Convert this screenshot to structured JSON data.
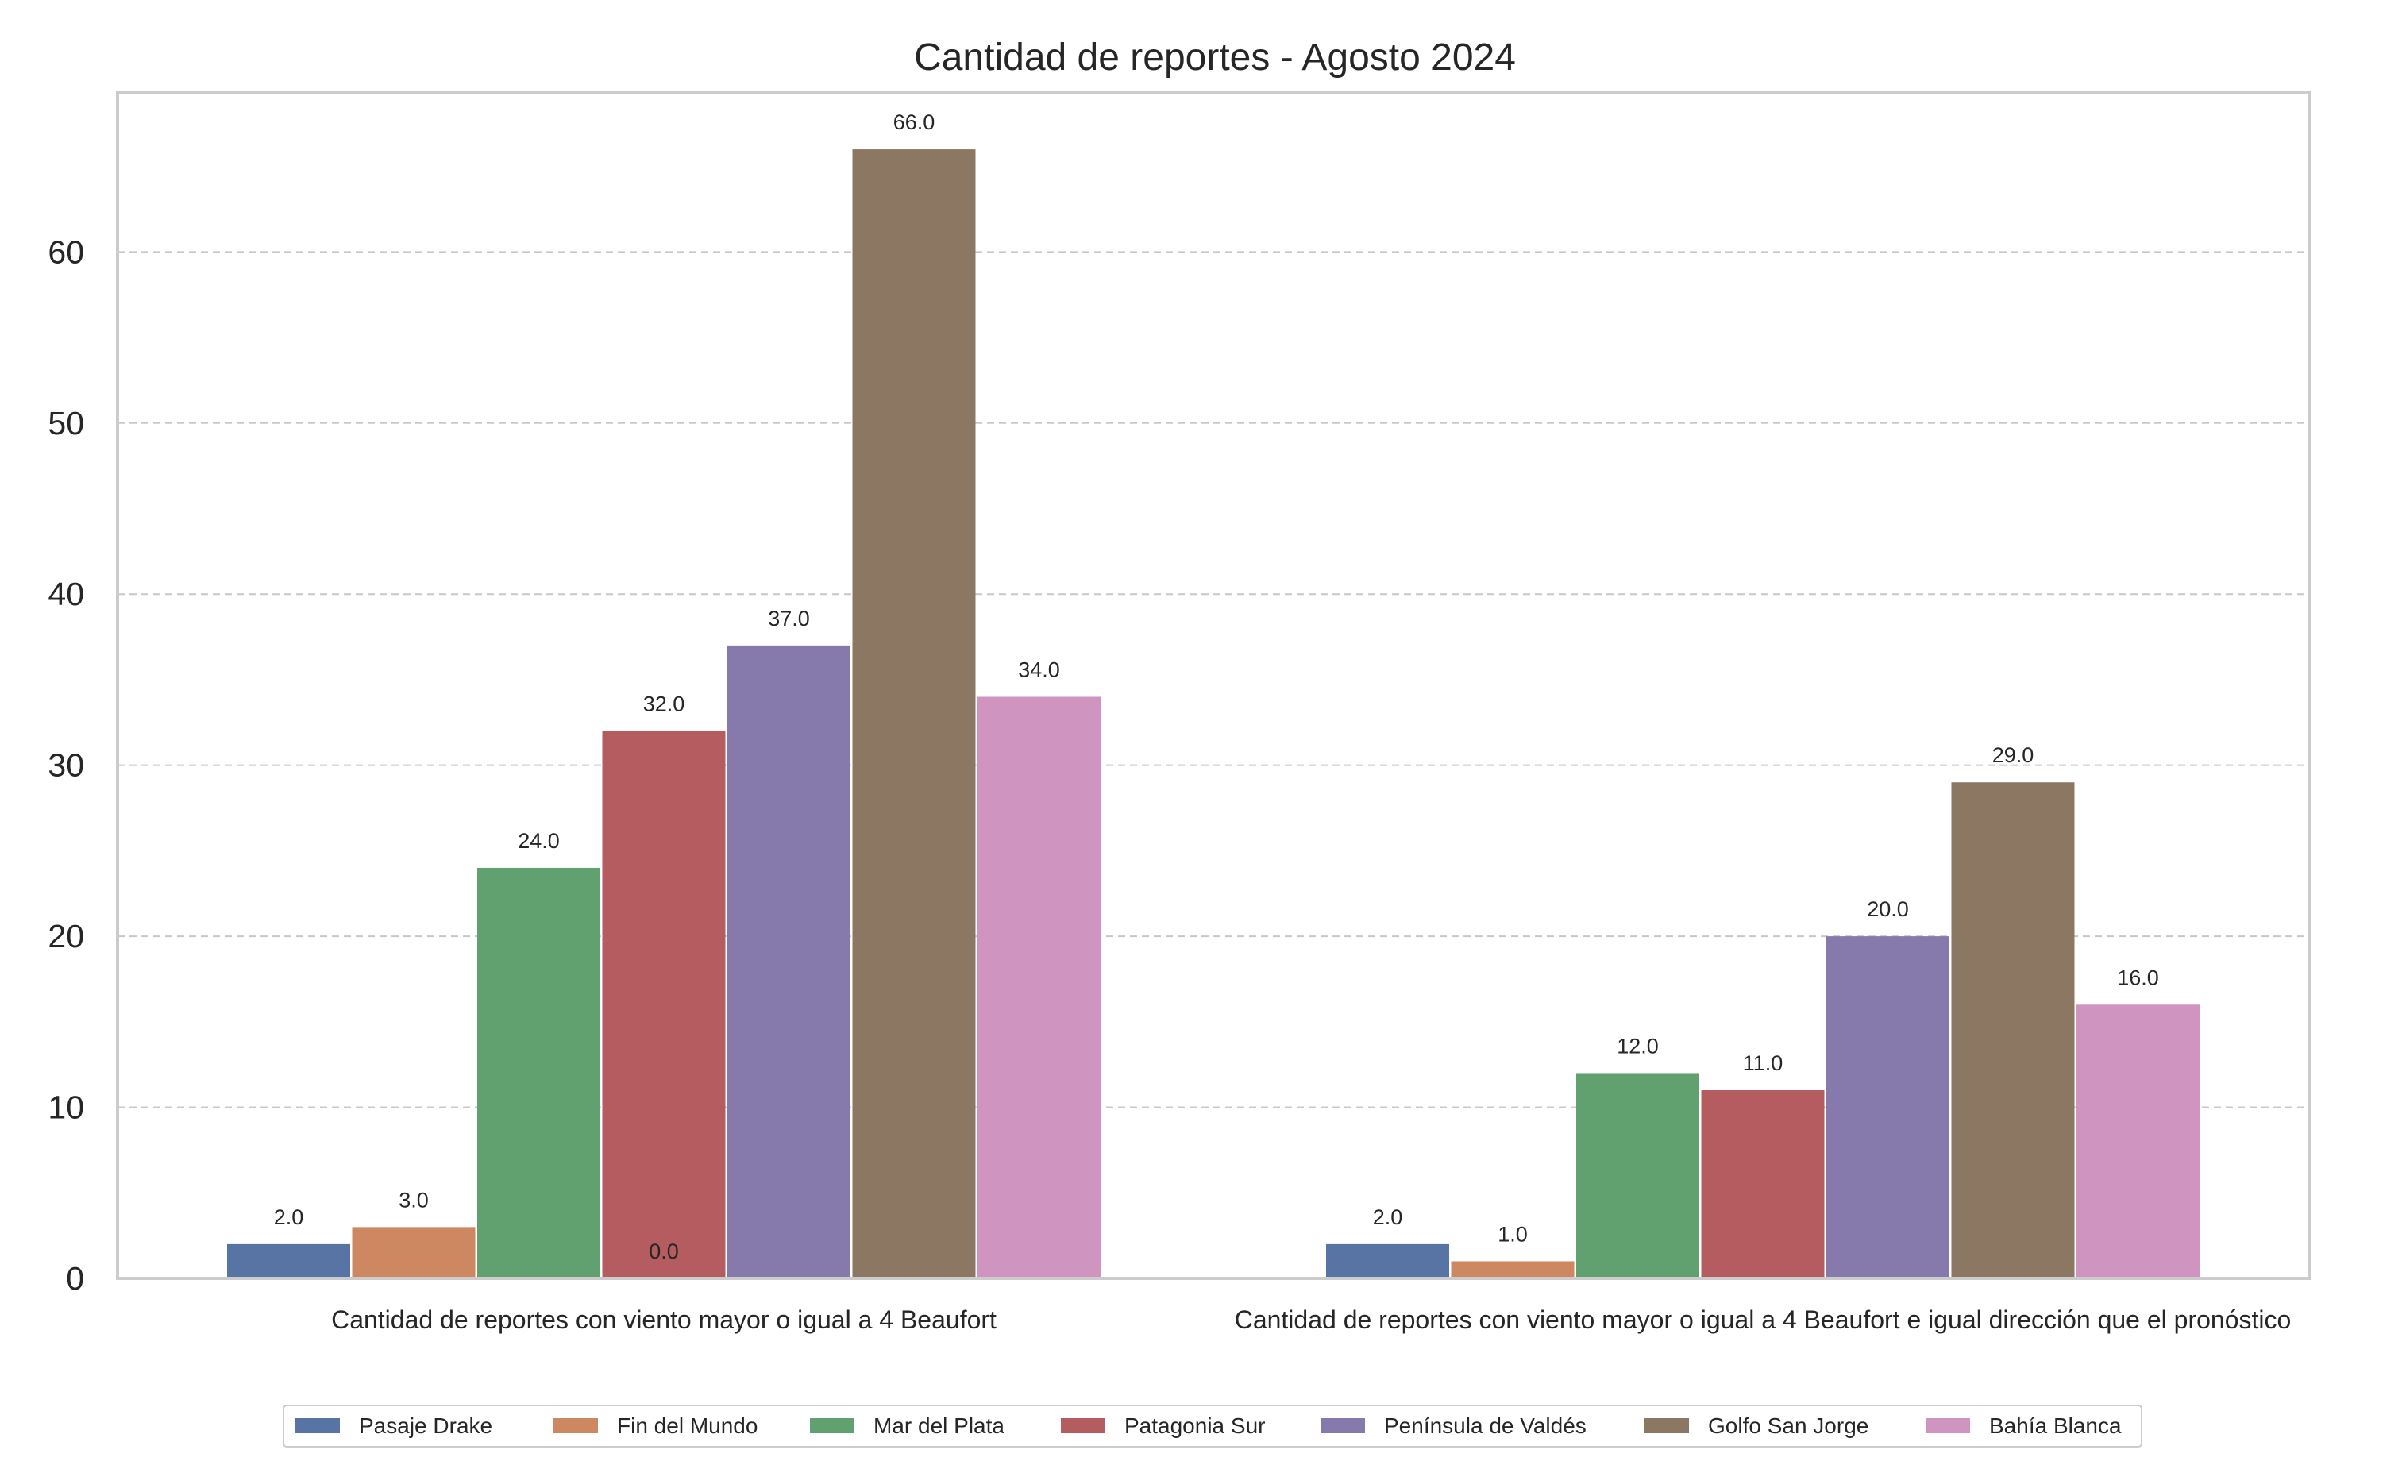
{
  "chart_data": {
    "type": "bar",
    "title": "Cantidad de reportes - Agosto 2024",
    "xlabel": "",
    "ylabel": "",
    "ylim": [
      0,
      69.3
    ],
    "yticks": [
      "0",
      "10",
      "20",
      "30",
      "40",
      "50",
      "60"
    ],
    "grid": "horizontal dashed",
    "legend_position": "bottom-center",
    "categories": [
      "Cantidad de reportes con viento mayor o igual a 4 Beaufort",
      "Cantidad de reportes con viento mayor o igual a 4 Beaufort e igual dirección que el pronóstico"
    ],
    "series": [
      {
        "name": "Pasaje Drake",
        "color": "#5874a4",
        "values": [
          2.0,
          2.0
        ],
        "labels": [
          "2.0",
          "2.0"
        ]
      },
      {
        "name": "Fin del Mundo",
        "color": "#cd8862",
        "values": [
          3.0,
          1.0
        ],
        "labels": [
          "3.0",
          "1.0"
        ]
      },
      {
        "name": "Mar del Plata",
        "color": "#61a06f",
        "values": [
          24.0,
          12.0
        ],
        "labels": [
          "24.0",
          "12.0"
        ]
      },
      {
        "name": "Patagonia Sur",
        "color": "#b45c5f",
        "values": [
          32.0,
          11.0
        ],
        "labels": [
          "32.0",
          "11.0"
        ]
      },
      {
        "name": "Península de Valdés",
        "color": "#8679ab",
        "values": [
          37.0,
          20.0
        ],
        "labels": [
          "37.0",
          "20.0"
        ]
      },
      {
        "name": "Golfo San Jorge",
        "color": "#8c7762",
        "values": [
          66.0,
          29.0
        ],
        "labels": [
          "66.0",
          "29.0"
        ]
      },
      {
        "name": "Bahía Blanca",
        "color": "#cf95c0",
        "values": [
          34.0,
          16.0
        ],
        "labels": [
          "34.0",
          "16.0"
        ]
      }
    ],
    "extra_annotations": [
      {
        "text": "0.0",
        "category_index": 0,
        "near_series_index": 3
      }
    ]
  }
}
